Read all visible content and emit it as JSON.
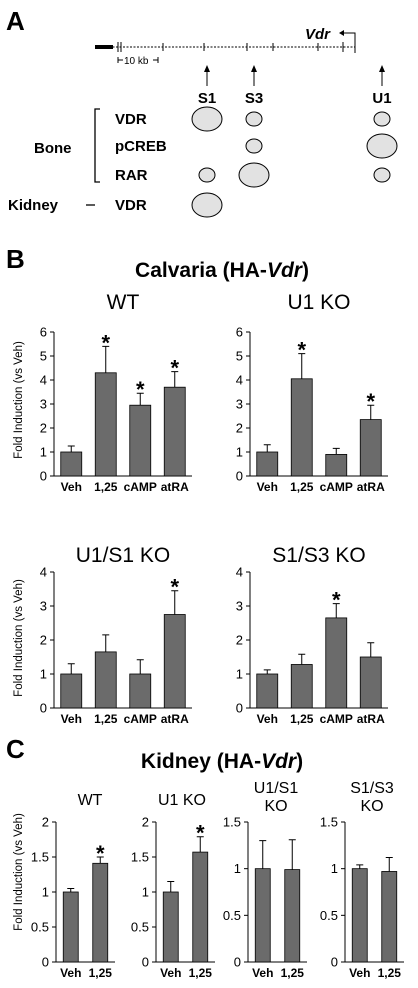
{
  "panel_a": {
    "letter": "A",
    "gene": "Vdr",
    "scale": "10 kb",
    "sites": [
      "S1",
      "S3",
      "U1"
    ],
    "group_bone": "Bone",
    "group_kidney": "Kidney",
    "rows": [
      "VDR",
      "pCREB",
      "RAR",
      "VDR"
    ],
    "peaks": [
      {
        "row": 0,
        "site": 0,
        "size": 3
      },
      {
        "row": 0,
        "site": 1,
        "size": 1
      },
      {
        "row": 0,
        "site": 2,
        "size": 1
      },
      {
        "row": 1,
        "site": 1,
        "size": 1
      },
      {
        "row": 1,
        "site": 2,
        "size": 3
      },
      {
        "row": 2,
        "site": 0,
        "size": 1
      },
      {
        "row": 2,
        "site": 1,
        "size": 3
      },
      {
        "row": 2,
        "site": 2,
        "size": 1
      },
      {
        "row": 3,
        "site": 0,
        "size": 3
      }
    ]
  },
  "panel_b": {
    "letter": "B",
    "title_prefix": "Calvaria (HA-",
    "title_gene": "Vdr",
    "title_suffix": ")"
  },
  "panel_c": {
    "letter": "C",
    "title_prefix": "Kidney (HA-",
    "title_gene": "Vdr",
    "title_suffix": ")"
  },
  "ylabel": "Fold Induction (vs Veh)",
  "significance_mark": "*",
  "chart_data": [
    {
      "type": "bar",
      "title": "WT",
      "categories": [
        "Veh",
        "1,25",
        "cAMP",
        "atRA"
      ],
      "values": [
        1.0,
        4.3,
        2.95,
        3.7
      ],
      "errors": [
        0.25,
        1.1,
        0.5,
        0.65
      ],
      "significant": [
        false,
        true,
        true,
        true
      ],
      "ylim": [
        0,
        6
      ],
      "yticks": [
        "0",
        "1",
        "2",
        "3",
        "4",
        "5",
        "6"
      ],
      "ylabel": "Fold Induction (vs Veh)"
    },
    {
      "type": "bar",
      "title": "U1 KO",
      "categories": [
        "Veh",
        "1,25",
        "cAMP",
        "atRA"
      ],
      "values": [
        1.0,
        4.05,
        0.9,
        2.35
      ],
      "errors": [
        0.3,
        1.05,
        0.25,
        0.6
      ],
      "significant": [
        false,
        true,
        false,
        true
      ],
      "ylim": [
        0,
        6
      ],
      "yticks": [
        "0",
        "1",
        "2",
        "3",
        "4",
        "5",
        "6"
      ],
      "ylabel": ""
    },
    {
      "type": "bar",
      "title": "U1/S1 KO",
      "categories": [
        "Veh",
        "1,25",
        "cAMP",
        "atRA"
      ],
      "values": [
        1.0,
        1.65,
        1.0,
        2.75
      ],
      "errors": [
        0.3,
        0.5,
        0.42,
        0.7
      ],
      "significant": [
        false,
        false,
        false,
        true
      ],
      "ylim": [
        0,
        4
      ],
      "yticks": [
        "0",
        "1",
        "2",
        "3",
        "4"
      ],
      "ylabel": "Fold Induction (vs Veh)"
    },
    {
      "type": "bar",
      "title": "S1/S3 KO",
      "categories": [
        "Veh",
        "1,25",
        "cAMP",
        "atRA"
      ],
      "values": [
        1.0,
        1.28,
        2.65,
        1.5
      ],
      "errors": [
        0.12,
        0.3,
        0.42,
        0.42
      ],
      "significant": [
        false,
        false,
        true,
        false
      ],
      "ylim": [
        0,
        4
      ],
      "yticks": [
        "0",
        "1",
        "2",
        "3",
        "4"
      ],
      "ylabel": ""
    },
    {
      "type": "bar",
      "title": "WT",
      "categories": [
        "Veh",
        "1,25"
      ],
      "values": [
        1.0,
        1.41
      ],
      "errors": [
        0.05,
        0.09
      ],
      "significant": [
        false,
        true
      ],
      "ylim": [
        0,
        2
      ],
      "yticks": [
        "0",
        "0.5",
        "1",
        "1.5",
        "2"
      ],
      "ylabel": "Fold Induction (vs Veh)"
    },
    {
      "type": "bar",
      "title": "U1 KO",
      "categories": [
        "Veh",
        "1,25"
      ],
      "values": [
        1.0,
        1.57
      ],
      "errors": [
        0.15,
        0.22
      ],
      "significant": [
        false,
        true
      ],
      "ylim": [
        0,
        2
      ],
      "yticks": [
        "0",
        "0.5",
        "1",
        "1.5",
        "2"
      ],
      "ylabel": ""
    },
    {
      "type": "bar",
      "title": "U1/S1\nKO",
      "categories": [
        "Veh",
        "1,25"
      ],
      "values": [
        1.0,
        0.99
      ],
      "errors": [
        0.3,
        0.32
      ],
      "significant": [
        false,
        false
      ],
      "ylim": [
        0,
        1.5
      ],
      "yticks": [
        "0",
        "0.5",
        "1",
        "1.5"
      ],
      "ylabel": ""
    },
    {
      "type": "bar",
      "title": "S1/S3\nKO",
      "categories": [
        "Veh",
        "1,25"
      ],
      "values": [
        1.0,
        0.97
      ],
      "errors": [
        0.04,
        0.15
      ],
      "significant": [
        false,
        false
      ],
      "ylim": [
        0,
        1.5
      ],
      "yticks": [
        "0",
        "0.5",
        "1",
        "1.5"
      ],
      "ylabel": ""
    }
  ]
}
